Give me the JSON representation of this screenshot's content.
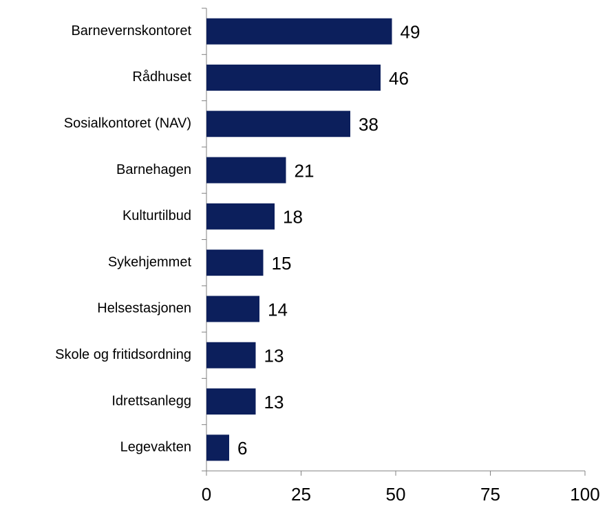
{
  "chart_data": {
    "type": "bar",
    "orientation": "horizontal",
    "categories": [
      "Barnevernskontoret",
      "Rådhuset",
      "Sosialkontoret (NAV)",
      "Barnehagen",
      "Kulturtilbud",
      "Sykehjemmet",
      "Helsestasjonen",
      "Skole og fritidsordning",
      "Idrettsanlegg",
      "Legevakten"
    ],
    "values": [
      49,
      46,
      38,
      21,
      18,
      15,
      14,
      13,
      13,
      6
    ],
    "color": "#0c1f5c",
    "xlim": [
      0,
      100
    ],
    "xticks": [
      0,
      25,
      50,
      75,
      100
    ]
  }
}
